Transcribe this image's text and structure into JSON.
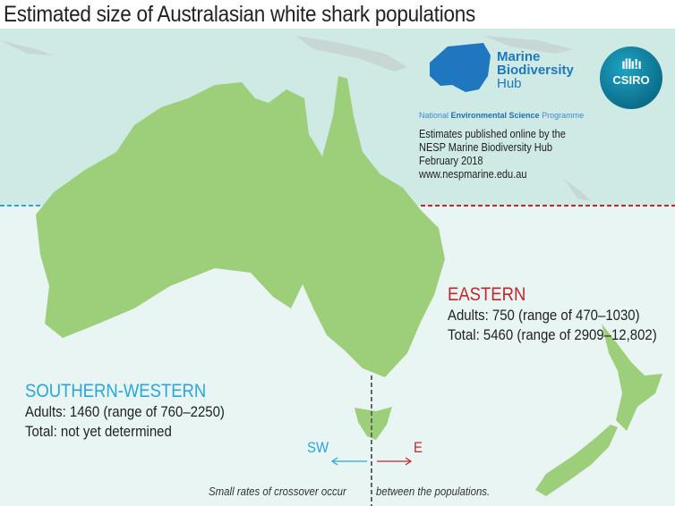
{
  "title": "Estimated size of Australasian white shark populations",
  "logos": {
    "hub": {
      "line1": "Marine",
      "line2": "Biodiversity",
      "line3": "Hub"
    },
    "nesp": {
      "pre": "National ",
      "bold": "Environmental Science",
      "post": " Programme"
    },
    "csiro": "CSIRO"
  },
  "publication": {
    "line1": "Estimates published online by the",
    "line2": "NESP Marine Biodiversity Hub",
    "line3": "February 2018",
    "line4": "www.nespmarine.edu.au"
  },
  "eastern": {
    "name": "EASTERN",
    "adults": "Adults: 750 (range of 470–1030)",
    "total": "Total: 5460 (range of 2909–12,802)",
    "color": "#c0272d"
  },
  "southern_western": {
    "name": "SOUTHERN-WESTERN",
    "adults": "Adults: 1460 (range of 760–2250)",
    "total": "Total: not yet determined",
    "color": "#27a6df"
  },
  "arrows": {
    "sw": "SW",
    "e": "E"
  },
  "footnote_left": "Small rates of crossover occur",
  "footnote_right": "between the populations.",
  "colors": {
    "land": "#9dcf7b",
    "sea_north": "#cfe9e4",
    "sea_south": "#e8f5f3"
  }
}
